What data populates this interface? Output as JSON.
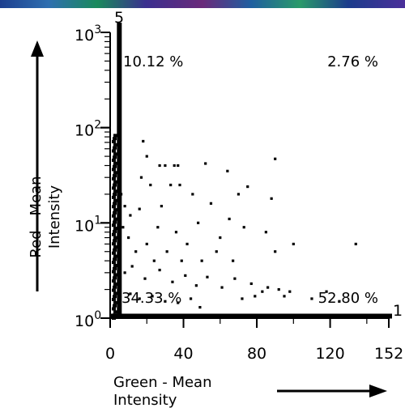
{
  "chart_data": {
    "type": "scatter",
    "xlabel": [
      "Green - Mean",
      "Intensity"
    ],
    "ylabel": [
      "Red - Mean",
      "Intensity"
    ],
    "xlim": [
      0,
      152
    ],
    "ylim": [
      1,
      1000
    ],
    "y_scale": "log",
    "x_tick_labels": [
      "0",
      "40",
      "80",
      "120",
      "152"
    ],
    "x_tick_values": [
      0,
      40,
      80,
      120,
      152
    ],
    "y_tick_labels": [
      {
        "base": "10",
        "exp": "0"
      },
      {
        "base": "10",
        "exp": "1"
      },
      {
        "base": "10",
        "exp": "2"
      },
      {
        "base": "10",
        "exp": "3"
      }
    ],
    "gate_labels": {
      "x_gate": "5",
      "y_gate": "1"
    },
    "gates": {
      "x": 5,
      "y": 1.05
    },
    "quadrants": {
      "upper_left": "10.12 %",
      "upper_right": "2.76 %",
      "lower_left": "34.33 %",
      "lower_right": "52.80 %"
    },
    "grid": false,
    "points": [
      [
        18,
        72
      ],
      [
        20,
        50
      ],
      [
        27,
        40
      ],
      [
        30,
        40
      ],
      [
        35,
        40
      ],
      [
        37,
        40
      ],
      [
        52,
        42
      ],
      [
        64,
        35
      ],
      [
        90,
        47
      ],
      [
        17,
        30
      ],
      [
        22,
        25
      ],
      [
        33,
        25
      ],
      [
        38,
        25
      ],
      [
        45,
        20
      ],
      [
        70,
        20
      ],
      [
        75,
        24
      ],
      [
        88,
        18
      ],
      [
        8,
        15
      ],
      [
        11,
        12
      ],
      [
        16,
        14
      ],
      [
        28,
        15
      ],
      [
        55,
        16
      ],
      [
        65,
        11
      ],
      [
        85,
        8
      ],
      [
        100,
        6
      ],
      [
        26,
        9
      ],
      [
        36,
        8
      ],
      [
        48,
        10
      ],
      [
        60,
        7
      ],
      [
        73,
        9
      ],
      [
        10,
        7
      ],
      [
        14,
        5
      ],
      [
        20,
        6
      ],
      [
        24,
        4
      ],
      [
        31,
        5
      ],
      [
        39,
        4
      ],
      [
        42,
        6
      ],
      [
        50,
        4
      ],
      [
        58,
        5
      ],
      [
        67,
        4
      ],
      [
        90,
        5
      ],
      [
        134,
        6
      ],
      [
        8,
        3
      ],
      [
        12,
        3.5
      ],
      [
        19,
        2.6
      ],
      [
        27,
        3.2
      ],
      [
        34,
        2.4
      ],
      [
        41,
        2.8
      ],
      [
        47,
        2.2
      ],
      [
        53,
        2.7
      ],
      [
        61,
        2.1
      ],
      [
        68,
        2.6
      ],
      [
        77,
        2.3
      ],
      [
        86,
        2.1
      ],
      [
        92,
        2.0
      ],
      [
        98,
        1.9
      ],
      [
        118,
        1.9
      ],
      [
        11,
        1.8
      ],
      [
        16,
        1.6
      ],
      [
        23,
        1.7
      ],
      [
        30,
        1.5
      ],
      [
        37,
        1.45
      ],
      [
        44,
        1.6
      ],
      [
        49,
        1.3
      ],
      [
        72,
        1.6
      ],
      [
        79,
        1.7
      ],
      [
        83,
        1.9
      ],
      [
        95,
        1.7
      ],
      [
        110,
        1.6
      ],
      [
        125,
        1.5
      ],
      [
        6,
        20
      ],
      [
        7,
        9
      ]
    ]
  }
}
